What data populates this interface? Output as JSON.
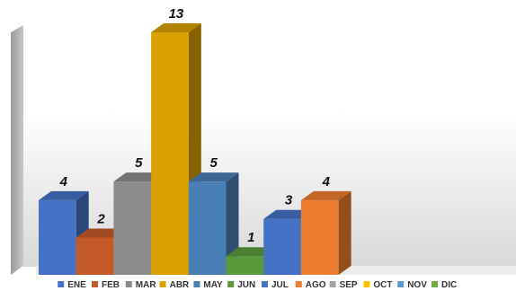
{
  "chart_data": {
    "type": "bar",
    "title": "",
    "xlabel": "",
    "ylabel": "",
    "ylim": [
      0,
      15
    ],
    "grid": false,
    "legend_position": "bottom",
    "three_d": true,
    "categories": [
      "ENE",
      "FEB",
      "MAR",
      "ABR",
      "MAY",
      "JUN",
      "JUL",
      "AGO",
      "SEP",
      "OCT",
      "NOV",
      "DIC"
    ],
    "values": [
      4,
      2,
      5,
      13,
      5,
      1,
      3,
      4,
      null,
      null,
      null,
      null
    ],
    "data_labels": [
      "4",
      "2",
      "5",
      "13",
      "5",
      "1",
      "3",
      "4",
      "",
      "",
      "",
      ""
    ],
    "colors": [
      "#4472c4",
      "#c55a28",
      "#8c8c8c",
      "#d9a000",
      "#4a7fb5",
      "#5a9a3c",
      "#4472c4",
      "#ed7d31",
      "#a5a5a5",
      "#ffc000",
      "#5b9bd5",
      "#70ad47"
    ]
  }
}
